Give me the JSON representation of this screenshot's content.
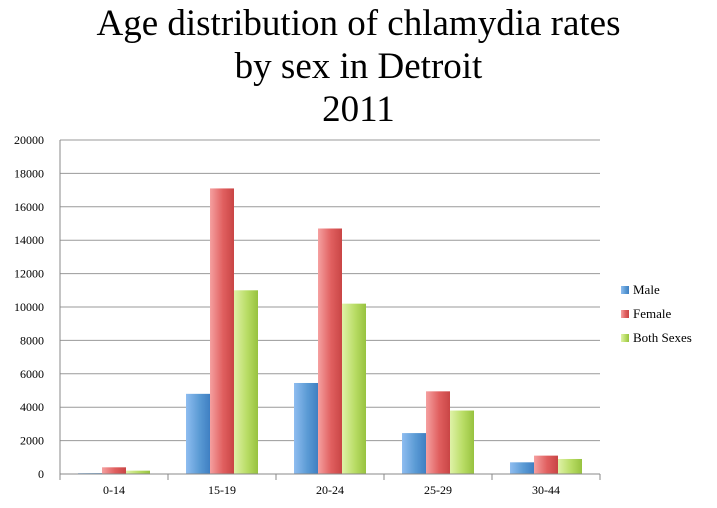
{
  "chart_data": {
    "type": "bar",
    "title_lines": [
      "Age distribution of chlamydia rates",
      "by sex in Detroit",
      "2011"
    ],
    "categories": [
      "0-14",
      "15-19",
      "20-24",
      "25-29",
      "30-44"
    ],
    "series": [
      {
        "name": "Male",
        "values": [
          50,
          4800,
          5450,
          2450,
          700
        ],
        "color": "#5b9bd5"
      },
      {
        "name": "Female",
        "values": [
          400,
          17100,
          14700,
          4950,
          1100
        ],
        "color": "#e05f5f"
      },
      {
        "name": "Both Sexes",
        "values": [
          200,
          11000,
          10200,
          3800,
          900
        ],
        "color": "#a6cc4e"
      }
    ],
    "y_ticks": [
      "0",
      "2000",
      "4000",
      "6000",
      "8000",
      "10000",
      "12000",
      "14000",
      "16000",
      "18000",
      "20000"
    ],
    "ylim": [
      0,
      20000
    ],
    "grid": true,
    "legend_position": "right"
  }
}
